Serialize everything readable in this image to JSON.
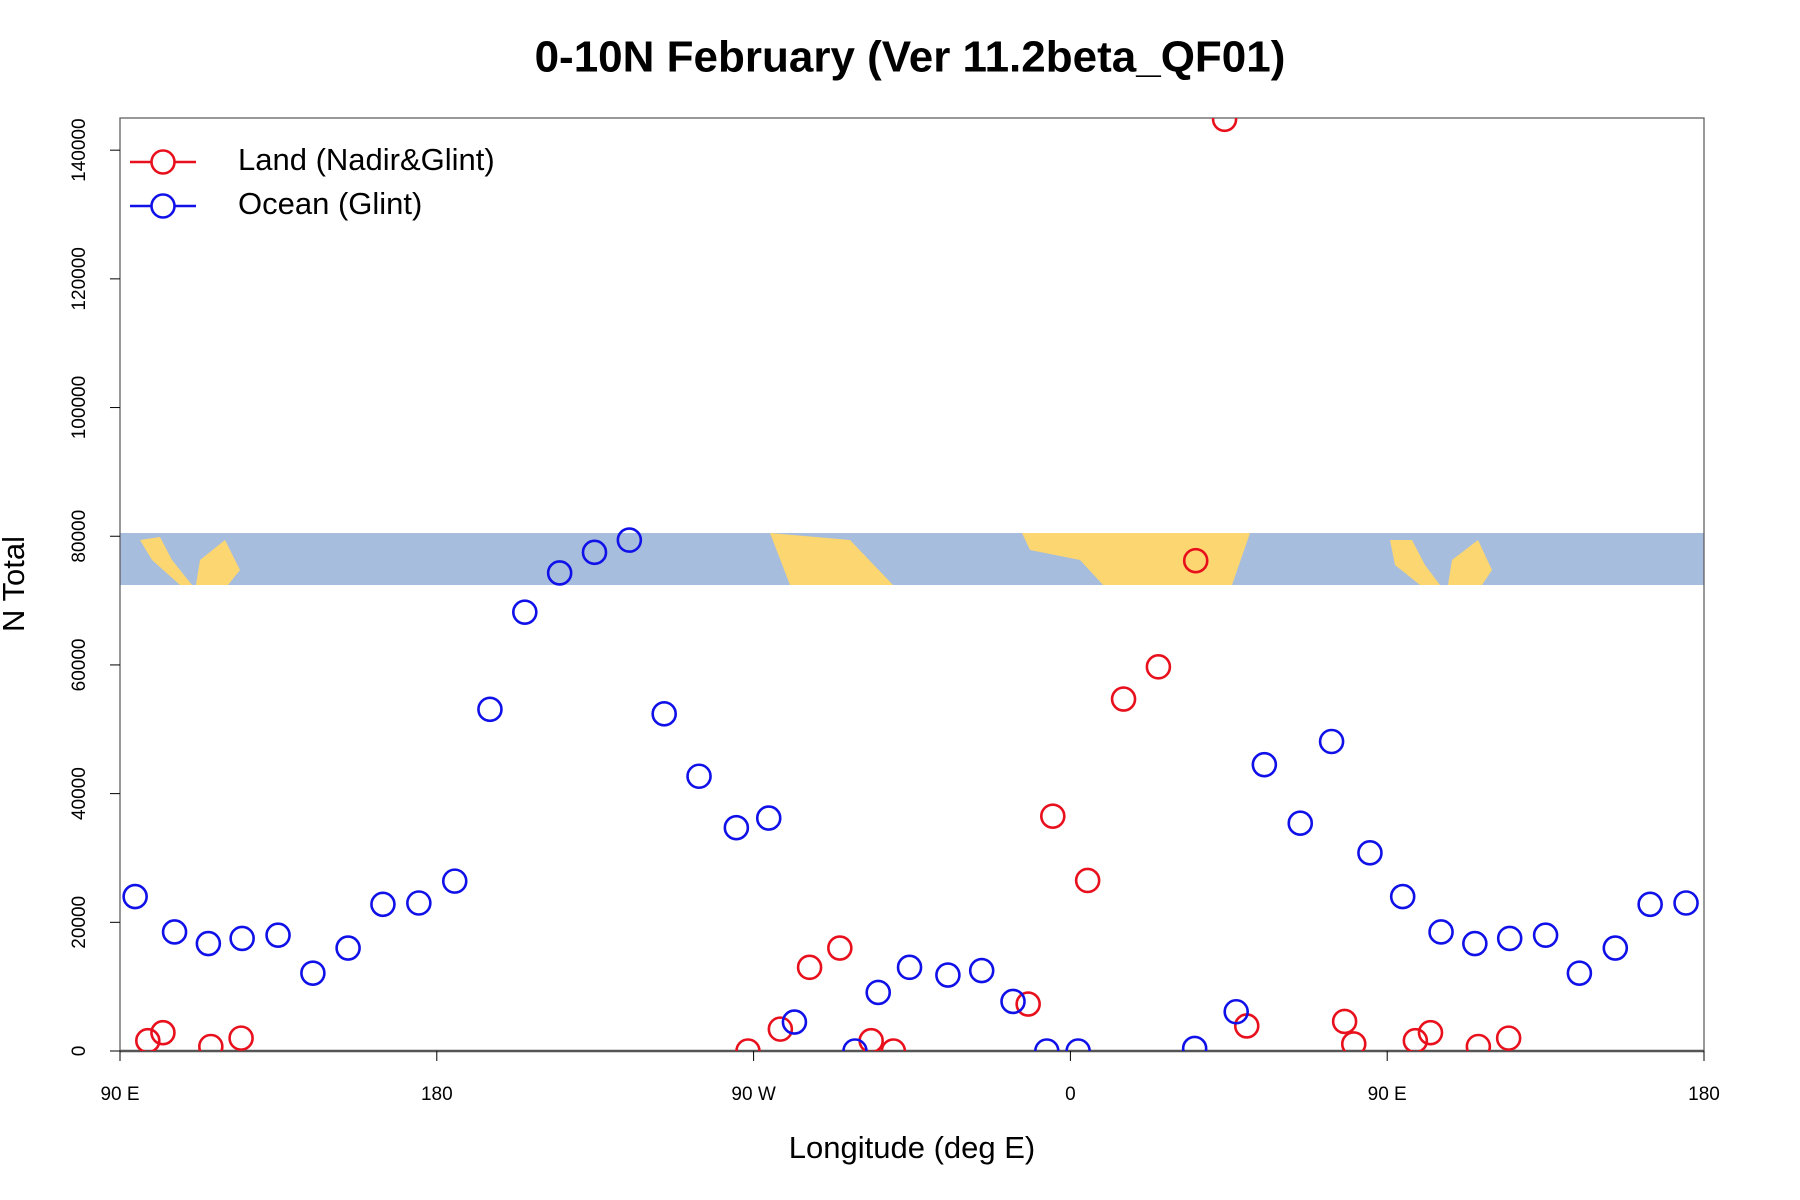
{
  "chart_data": {
    "type": "scatter",
    "title": "0-10N February (Ver 11.2beta_QF01)",
    "x_label": "Longitude (deg E)",
    "y_label": "N Total",
    "xlim": [
      90,
      540
    ],
    "xticks": [
      {
        "value": 90,
        "label": "90 E"
      },
      180,
      {
        "value": 270,
        "label": "90 W"
      },
      {
        "value": 360,
        "label": "0"
      },
      {
        "value": 450,
        "label": "90 E"
      },
      {
        "value": 540,
        "label": "180"
      }
    ],
    "ylim": [
      0,
      145000
    ],
    "yticks": [
      0,
      20000,
      40000,
      60000,
      80000,
      100000,
      120000,
      140000
    ],
    "grid": false,
    "legend": "top-left",
    "series": [
      {
        "name": "Land (Nadir&Glint)",
        "color": "#e8101c",
        "x": [
          97.9,
          102.2,
          115.8,
          124.4,
          268.4,
          277.6,
          285.9,
          294.5,
          303.4,
          309.7,
          348.0,
          355.0,
          364.9,
          375.1,
          385.0,
          395.6,
          403.8,
          410.1,
          437.9,
          440.5,
          458.0,
          462.3,
          475.9,
          484.5
        ],
        "values": [
          1600,
          2850,
          700,
          2000,
          0,
          3400,
          13000,
          16000,
          1600,
          0,
          7300,
          36500,
          26500,
          54700,
          59700,
          76200,
          144800,
          3900,
          4600,
          1100,
          1600,
          2850,
          700,
          2000
        ]
      },
      {
        "name": "Ocean (Glint)",
        "color": "#1010e8",
        "x": [
          94.3,
          105.5,
          115.1,
          124.7,
          134.9,
          144.8,
          154.8,
          164.7,
          174.9,
          185.1,
          195.1,
          205.0,
          214.9,
          224.8,
          234.7,
          244.6,
          254.5,
          265.1,
          274.3,
          281.6,
          298.8,
          305.4,
          314.3,
          325.2,
          334.8,
          343.7,
          353.3,
          362.2,
          395.3,
          407.1,
          415.1,
          425.3,
          434.2,
          445.1,
          454.4,
          465.3,
          474.9,
          484.8,
          495.0,
          504.6,
          514.8,
          524.7,
          534.9
        ],
        "values": [
          24000,
          18500,
          16700,
          17500,
          18000,
          12100,
          16000,
          22800,
          23000,
          26400,
          53100,
          68200,
          74300,
          77500,
          79400,
          52400,
          42700,
          34700,
          36200,
          4500,
          0,
          9100,
          13000,
          11800,
          12500,
          7700,
          0,
          0,
          400,
          6100,
          44500,
          35400,
          48100,
          30800,
          24000,
          18500,
          16700,
          17500,
          18000,
          12100,
          16000,
          22800,
          23000
        ]
      }
    ]
  }
}
